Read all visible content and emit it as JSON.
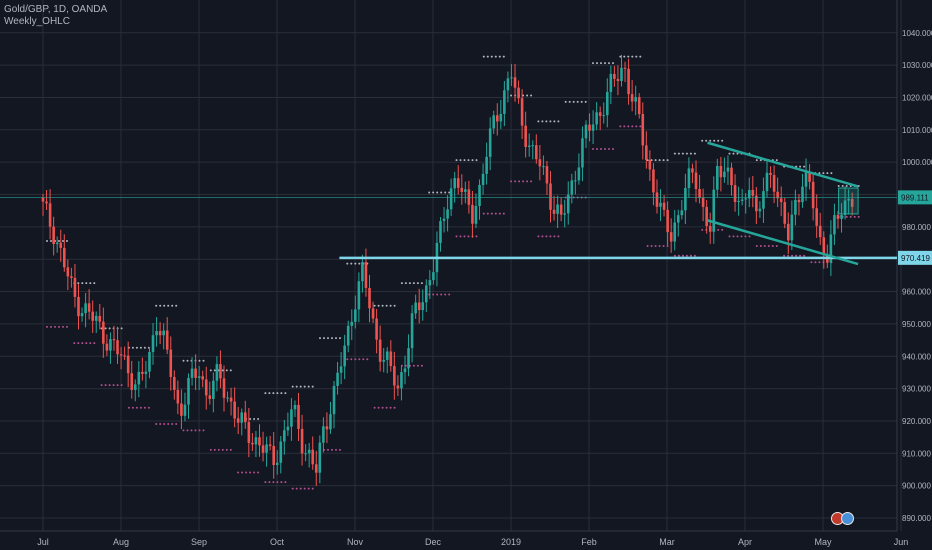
{
  "header": {
    "symbol_line": "Gold/GBP, 1D, OANDA",
    "indicator_line": "Weekly_OHLC"
  },
  "colors": {
    "background": "#131722",
    "grid": "#2a2e39",
    "up": "#26a69a",
    "down": "#ef5350",
    "channel": "#26a69a",
    "support": "#7fd6e8",
    "axis_text": "#b2b5be",
    "marker": "#b2b5be"
  },
  "chart_data": {
    "type": "candlestick",
    "y_axis_ticks": [
      "890.000",
      "900.000",
      "910.000",
      "920.000",
      "930.000",
      "940.000",
      "950.000",
      "960.000",
      "970.000",
      "980.000",
      "990.000",
      "1000.000",
      "1010.000",
      "1020.000",
      "1030.000",
      "1040.000"
    ],
    "ylim": [
      886,
      1044
    ],
    "x_axis_labels": [
      {
        "label": "Jul",
        "month": 0
      },
      {
        "label": "Aug",
        "month": 1
      },
      {
        "label": "Sep",
        "month": 2
      },
      {
        "label": "Oct",
        "month": 3
      },
      {
        "label": "Nov",
        "month": 4
      },
      {
        "label": "Dec",
        "month": 5
      },
      {
        "label": "2019",
        "month": 6
      },
      {
        "label": "Feb",
        "month": 7
      },
      {
        "label": "Mar",
        "month": 8
      },
      {
        "label": "Apr",
        "month": 9
      },
      {
        "label": "May",
        "month": 10
      },
      {
        "label": "Jun",
        "month": 11
      }
    ],
    "price_labels": [
      {
        "label": "989.111",
        "value": 989.111,
        "color": "#26a69a"
      },
      {
        "label": "970.419",
        "value": 970.419,
        "color": "#7fd6e8"
      }
    ],
    "support_line": {
      "value": 970.419,
      "from_month": 3.8
    },
    "channel": {
      "upper": {
        "x1": 8.52,
        "y1": 1006.0,
        "x2": 10.45,
        "y2": 992.5
      },
      "lower": {
        "x1": 8.52,
        "y1": 982.0,
        "x2": 10.45,
        "y2": 968.5
      }
    },
    "projection_box": {
      "x1": 10.2,
      "x2": 10.45,
      "y1": 984.0,
      "y2": 992.0
    },
    "weekly_path": [
      [
        0.0,
        986
      ],
      [
        0.15,
        978
      ],
      [
        0.3,
        966
      ],
      [
        0.4,
        958
      ],
      [
        0.55,
        954
      ],
      [
        0.7,
        950
      ],
      [
        0.85,
        944
      ],
      [
        1.0,
        940
      ],
      [
        1.1,
        936
      ],
      [
        1.2,
        930
      ],
      [
        1.35,
        938
      ],
      [
        1.45,
        952
      ],
      [
        1.55,
        944
      ],
      [
        1.65,
        934
      ],
      [
        1.75,
        922
      ],
      [
        1.85,
        930
      ],
      [
        2.0,
        936
      ],
      [
        2.1,
        928
      ],
      [
        2.25,
        934
      ],
      [
        2.4,
        926
      ],
      [
        2.5,
        920
      ],
      [
        2.65,
        916
      ],
      [
        2.8,
        912
      ],
      [
        2.95,
        908
      ],
      [
        3.1,
        916
      ],
      [
        3.2,
        924
      ],
      [
        3.35,
        912
      ],
      [
        3.5,
        904
      ],
      [
        3.6,
        918
      ],
      [
        3.75,
        930
      ],
      [
        3.9,
        946
      ],
      [
        4.0,
        958
      ],
      [
        4.1,
        966
      ],
      [
        4.15,
        960
      ],
      [
        4.25,
        948
      ],
      [
        4.35,
        940
      ],
      [
        4.45,
        936
      ],
      [
        4.55,
        930
      ],
      [
        4.65,
        940
      ],
      [
        4.75,
        952
      ],
      [
        4.9,
        960
      ],
      [
        5.0,
        968
      ],
      [
        5.1,
        978
      ],
      [
        5.2,
        990
      ],
      [
        5.3,
        996
      ],
      [
        5.4,
        988
      ],
      [
        5.5,
        984
      ],
      [
        5.6,
        992
      ],
      [
        5.7,
        1004
      ],
      [
        5.8,
        1014
      ],
      [
        5.9,
        1020
      ],
      [
        6.0,
        1028
      ],
      [
        6.08,
        1018
      ],
      [
        6.15,
        1012
      ],
      [
        6.25,
        1004
      ],
      [
        6.35,
        1000
      ],
      [
        6.45,
        994
      ],
      [
        6.55,
        986
      ],
      [
        6.65,
        982
      ],
      [
        6.75,
        990
      ],
      [
        6.85,
        1000
      ],
      [
        6.95,
        1008
      ],
      [
        7.05,
        1012
      ],
      [
        7.15,
        1016
      ],
      [
        7.25,
        1022
      ],
      [
        7.35,
        1026
      ],
      [
        7.45,
        1030
      ],
      [
        7.55,
        1020
      ],
      [
        7.65,
        1012
      ],
      [
        7.75,
        1000
      ],
      [
        7.85,
        990
      ],
      [
        7.95,
        982
      ],
      [
        8.05,
        978
      ],
      [
        8.15,
        984
      ],
      [
        8.25,
        992
      ],
      [
        8.35,
        998
      ],
      [
        8.45,
        986
      ],
      [
        8.55,
        978
      ],
      [
        8.65,
        998
      ],
      [
        8.75,
        1000
      ],
      [
        8.85,
        990
      ],
      [
        8.95,
        984
      ],
      [
        9.05,
        996
      ],
      [
        9.15,
        982
      ],
      [
        9.25,
        992
      ],
      [
        9.35,
        998
      ],
      [
        9.45,
        986
      ],
      [
        9.55,
        976
      ],
      [
        9.65,
        988
      ],
      [
        9.75,
        996
      ],
      [
        9.85,
        990
      ],
      [
        9.95,
        976
      ],
      [
        10.05,
        972
      ],
      [
        10.15,
        980
      ],
      [
        10.25,
        986
      ],
      [
        10.35,
        990
      ],
      [
        10.4,
        989.111
      ]
    ],
    "weekly_levels": [
      [
        0.0,
        0.35,
        975,
        950
      ],
      [
        0.35,
        0.7,
        962,
        945
      ],
      [
        0.7,
        1.05,
        948,
        932
      ],
      [
        1.05,
        1.4,
        942,
        925
      ],
      [
        1.4,
        1.75,
        955,
        920
      ],
      [
        1.75,
        2.1,
        938,
        918
      ],
      [
        2.1,
        2.45,
        935,
        912
      ],
      [
        2.45,
        2.8,
        920,
        905
      ],
      [
        2.8,
        3.15,
        928,
        902
      ],
      [
        3.15,
        3.5,
        930,
        900
      ],
      [
        3.5,
        3.85,
        945,
        912
      ],
      [
        3.85,
        4.2,
        968,
        940
      ],
      [
        4.2,
        4.55,
        955,
        925
      ],
      [
        4.55,
        4.9,
        962,
        938
      ],
      [
        4.9,
        5.25,
        990,
        960
      ],
      [
        5.25,
        5.6,
        1000,
        978
      ],
      [
        5.6,
        5.95,
        1032,
        985
      ],
      [
        5.95,
        6.3,
        1020,
        995
      ],
      [
        6.3,
        6.65,
        1012,
        978
      ],
      [
        6.65,
        7.0,
        1018,
        990
      ],
      [
        7.0,
        7.35,
        1030,
        1005
      ],
      [
        7.35,
        7.7,
        1032,
        1012
      ],
      [
        7.7,
        8.05,
        1000,
        975
      ],
      [
        8.05,
        8.4,
        1002,
        972
      ],
      [
        8.4,
        8.75,
        1006,
        980
      ],
      [
        8.75,
        9.1,
        1002,
        978
      ],
      [
        9.1,
        9.45,
        1000,
        975
      ],
      [
        9.45,
        9.8,
        998,
        972
      ],
      [
        9.8,
        10.15,
        996,
        970
      ],
      [
        10.15,
        10.45,
        992,
        984
      ]
    ]
  }
}
